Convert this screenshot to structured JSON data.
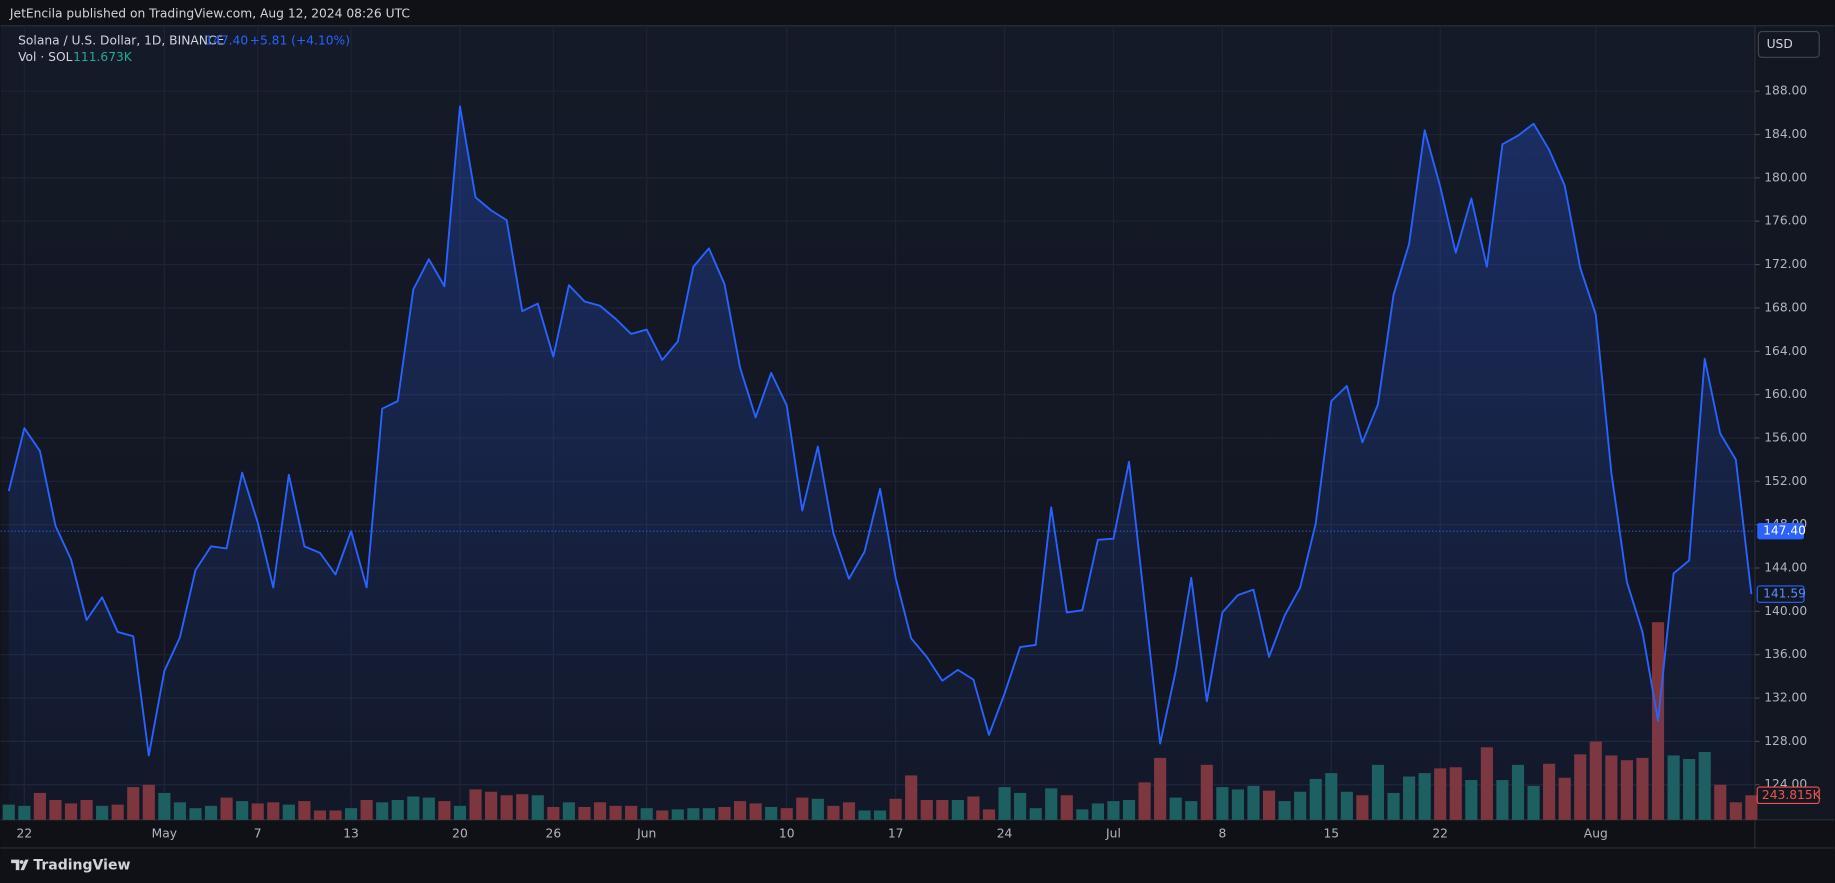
{
  "header": {
    "publisher": "JetEncila published on TradingView.com, Aug 12, 2024 08:26 UTC",
    "symbol": "Solana / U.S. Dollar, 1D, BINANCE",
    "price": "147.40",
    "change": "+5.81 (+4.10%)",
    "volume_title": "Vol · SOL",
    "volume": "111.673K",
    "currency": "USD"
  },
  "footer": {
    "brand": "TradingView"
  },
  "chart_data": {
    "type": "line",
    "categories": [
      null,
      "22",
      null,
      null,
      null,
      null,
      null,
      null,
      null,
      null,
      "May",
      null,
      null,
      null,
      null,
      null,
      "7",
      null,
      null,
      null,
      null,
      null,
      "13",
      null,
      null,
      null,
      null,
      null,
      null,
      "20",
      null,
      null,
      null,
      null,
      null,
      "26",
      null,
      null,
      null,
      null,
      null,
      "Jun",
      null,
      null,
      null,
      null,
      null,
      null,
      null,
      null,
      "10",
      null,
      null,
      null,
      null,
      null,
      null,
      "17",
      null,
      null,
      null,
      null,
      null,
      null,
      "24",
      null,
      null,
      null,
      null,
      null,
      null,
      "Jul",
      null,
      null,
      null,
      null,
      null,
      null,
      "8",
      null,
      null,
      null,
      null,
      null,
      null,
      "15",
      null,
      null,
      null,
      null,
      null,
      null,
      "22",
      null,
      null,
      null,
      null,
      null,
      null,
      null,
      null,
      null,
      "Aug",
      null,
      null,
      null,
      null,
      null,
      null,
      null,
      null,
      null,
      null
    ],
    "series": [
      {
        "name": "Solana / U.S. Dollar",
        "color": "#2962ff",
        "values": [
          151.1,
          156.9,
          154.8,
          147.9,
          144.8,
          139.2,
          141.3,
          138.1,
          137.7,
          126.7,
          134.5,
          137.6,
          143.8,
          146.0,
          145.8,
          152.8,
          148.2,
          142.2,
          152.6,
          146.0,
          145.4,
          143.4,
          147.4,
          142.2,
          158.7,
          159.4,
          169.7,
          172.5,
          170.0,
          186.6,
          178.2,
          177.0,
          176.1,
          167.7,
          168.4,
          163.5,
          170.1,
          168.6,
          168.2,
          167.0,
          165.6,
          166.0,
          163.2,
          164.9,
          171.8,
          173.5,
          170.2,
          162.5,
          157.9,
          162.0,
          159.0,
          149.3,
          155.2,
          147.2,
          143.0,
          145.5,
          151.3,
          143.1,
          137.5,
          135.8,
          133.6,
          134.6,
          133.7,
          128.6,
          132.4,
          136.7,
          136.9,
          149.6,
          139.9,
          140.1,
          146.6,
          146.7,
          153.8,
          140.8,
          127.8,
          134.5,
          143.1,
          131.7,
          139.9,
          141.5,
          142.0,
          135.8,
          139.6,
          142.2,
          148.1,
          159.4,
          160.8,
          155.6,
          159.1,
          169.2,
          173.9,
          184.4,
          179.2,
          173.1,
          178.1,
          171.8,
          183.1,
          183.9,
          185.0,
          182.6,
          179.3,
          171.7,
          167.4,
          152.8,
          142.7,
          138.1,
          129.9,
          143.5,
          144.7,
          163.3,
          156.4,
          154.0,
          141.59
        ]
      },
      {
        "name": "Vol · SOL",
        "axis": "y2",
        "up_color": "#1e5f5c",
        "down_color": "#803538",
        "values": [
          151,
          139,
          267,
          197,
          163,
          197,
          139,
          151,
          325,
          348,
          267,
          174,
          116,
          139,
          221,
          186,
          163,
          174,
          151,
          186,
          93,
          93,
          116,
          197,
          174,
          197,
          232,
          221,
          186,
          139,
          302,
          279,
          244,
          255,
          244,
          128,
          174,
          128,
          174,
          139,
          139,
          116,
          93,
          104,
          116,
          116,
          128,
          186,
          163,
          128,
          116,
          221,
          209,
          139,
          174,
          93,
          93,
          209,
          441,
          197,
          197,
          197,
          232,
          104,
          325,
          267,
          116,
          313,
          244,
          104,
          163,
          186,
          197,
          372,
          615,
          221,
          186,
          546,
          325,
          302,
          337,
          290,
          186,
          279,
          406,
          464,
          279,
          244,
          546,
          267,
          430,
          464,
          511,
          522,
          395,
          720,
          395,
          546,
          337,
          557,
          418,
          650,
          778,
          639,
          592,
          615,
          1962,
          639,
          604,
          673,
          348,
          174,
          243.815
        ]
      }
    ],
    "ylim": [
      120.76,
      194.04
    ],
    "yticks": [
      {
        "value": 124,
        "label": "124.00"
      },
      {
        "value": 128,
        "label": "128.00"
      },
      {
        "value": 132,
        "label": "132.00"
      },
      {
        "value": 136,
        "label": "136.00"
      },
      {
        "value": 140,
        "label": "140.00"
      },
      {
        "value": 144,
        "label": "144.00"
      },
      {
        "value": 148,
        "label": "148.00"
      },
      {
        "value": 152,
        "label": "152.00"
      },
      {
        "value": 156,
        "label": "156.00"
      },
      {
        "value": 160,
        "label": "160.00"
      },
      {
        "value": 164,
        "label": "164.00"
      },
      {
        "value": 168,
        "label": "168.00"
      },
      {
        "value": 172,
        "label": "172.00"
      },
      {
        "value": 176,
        "label": "176.00"
      },
      {
        "value": 180,
        "label": "180.00"
      },
      {
        "value": 184,
        "label": "184.00"
      },
      {
        "value": 188,
        "label": "188.00"
      }
    ],
    "y2lim": [
      0,
      7883
    ],
    "price_line": {
      "value": 147.4,
      "label": "147.40"
    },
    "last_price": {
      "value": 141.59,
      "label": "141.59"
    },
    "last_volume": {
      "value": 243.815,
      "label": "243.815K"
    },
    "grid": true
  }
}
